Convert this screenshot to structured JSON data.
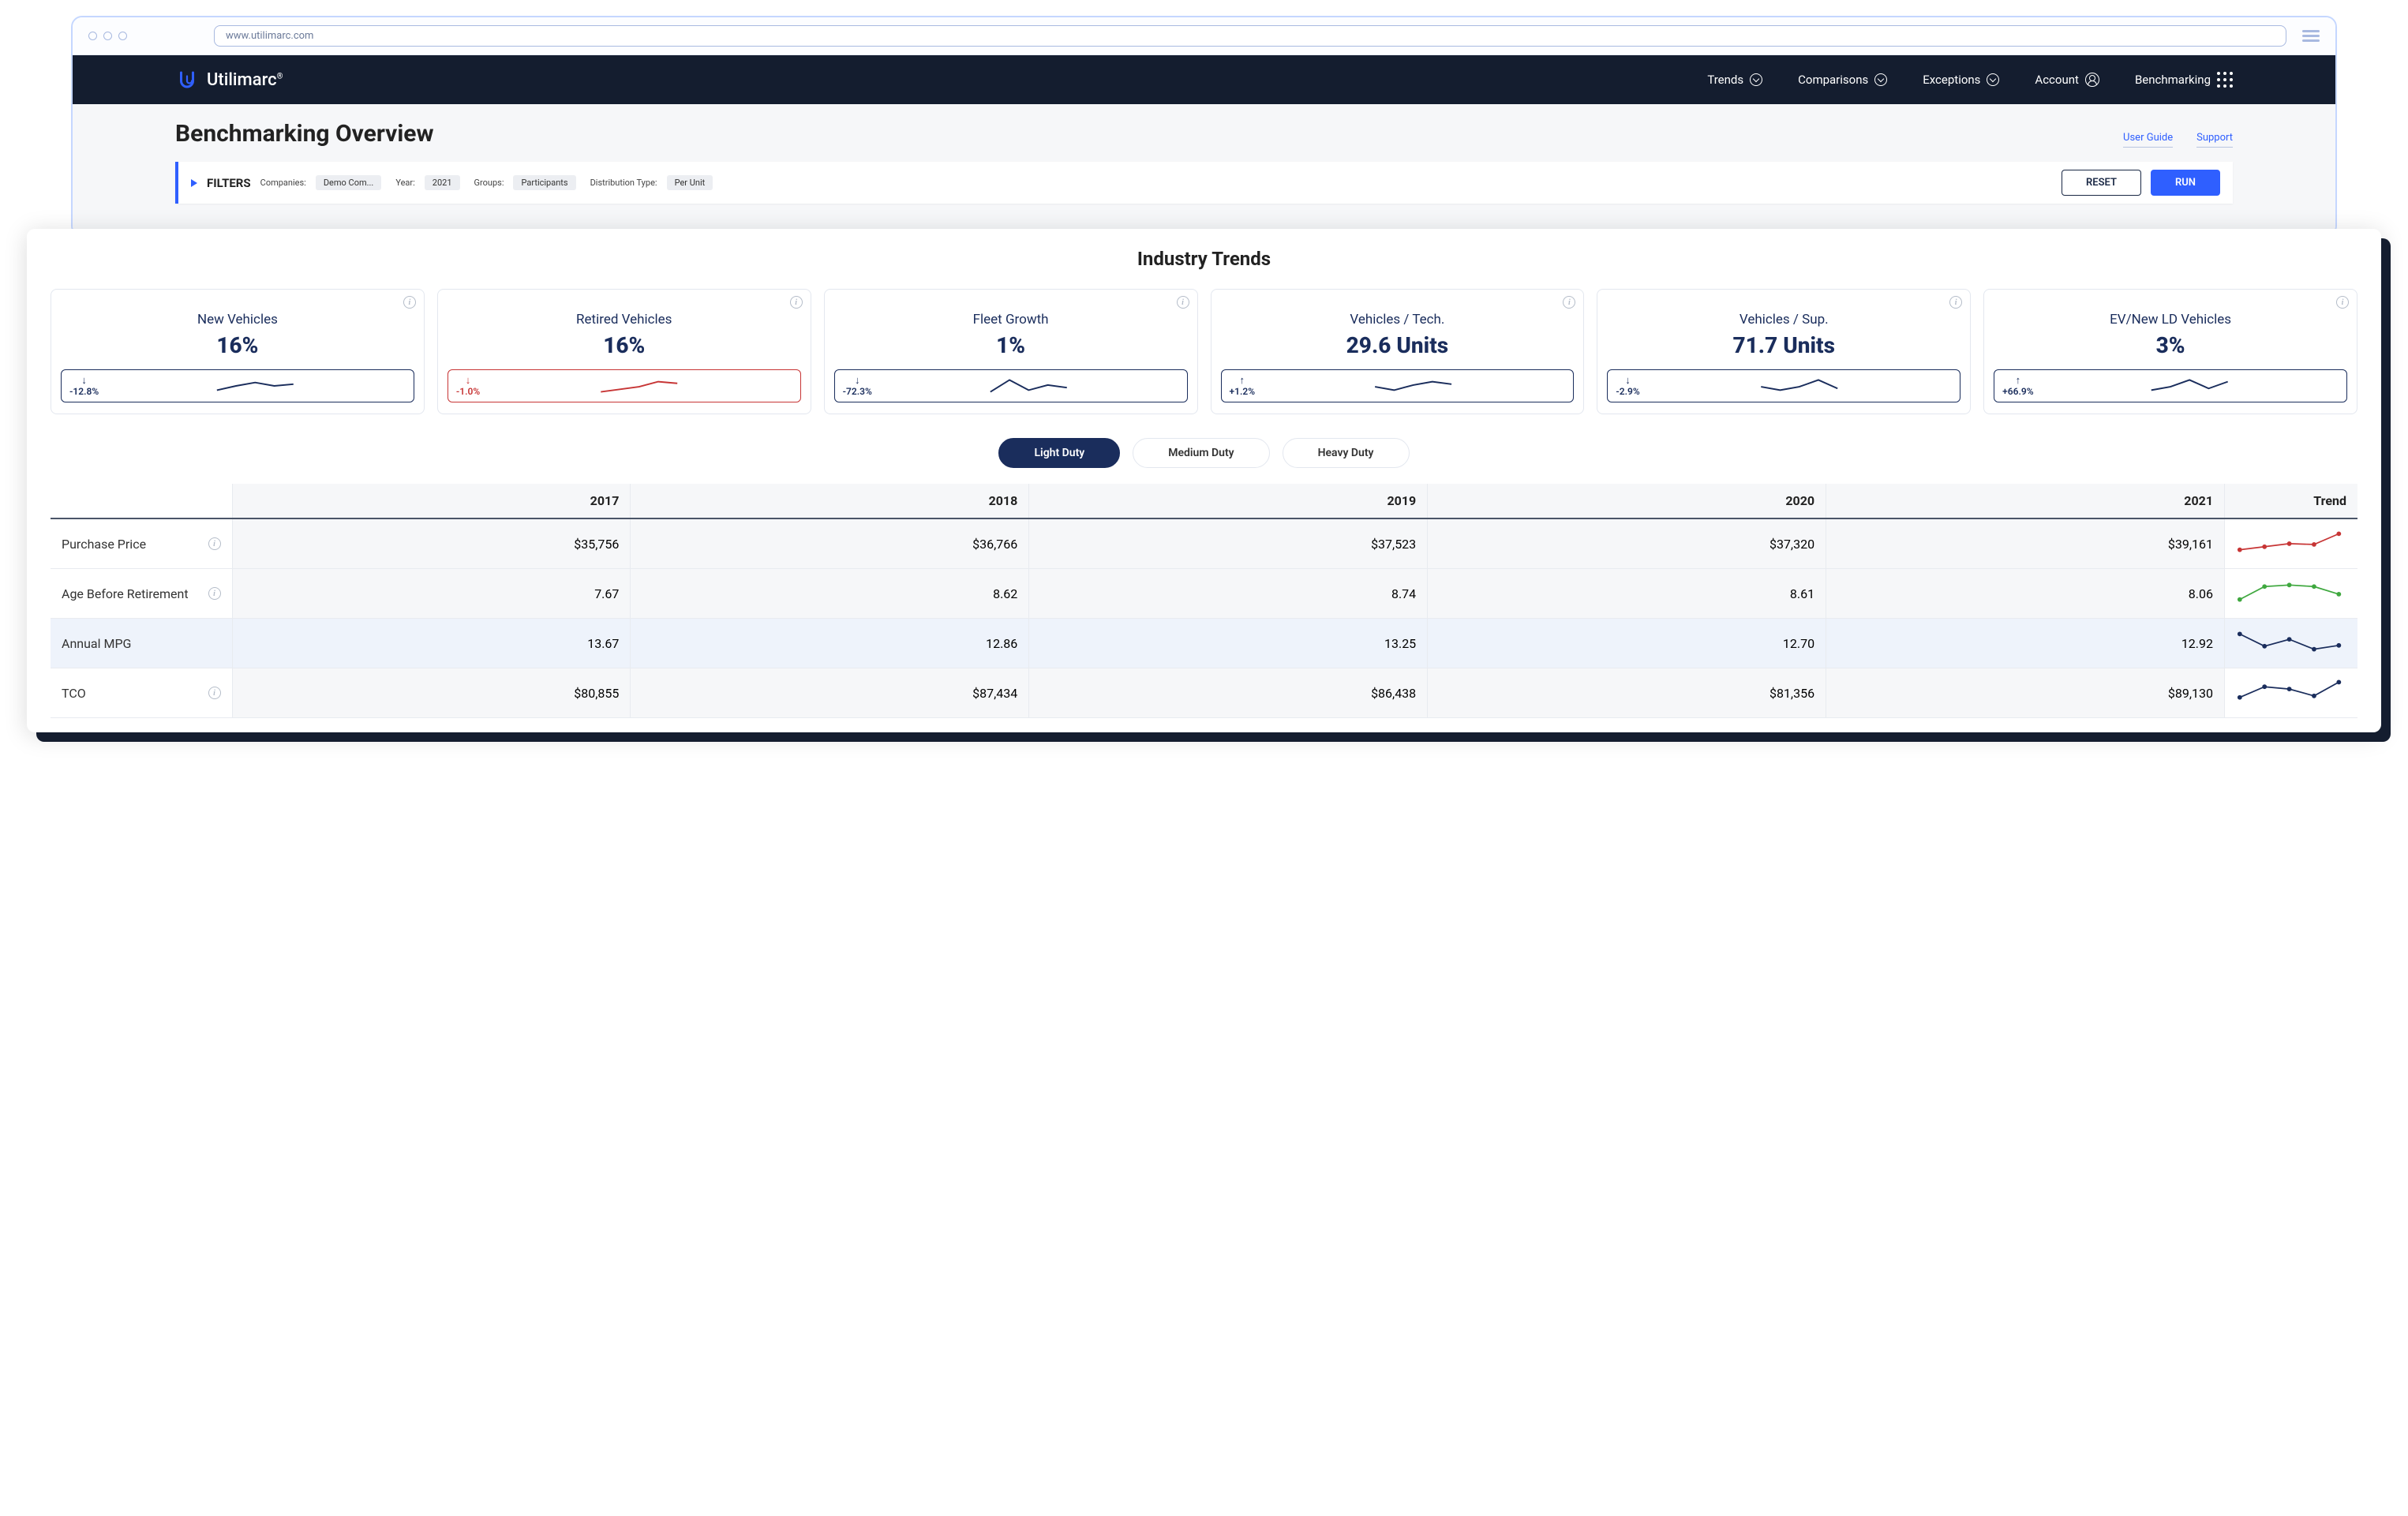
{
  "browser": {
    "url": "www.utilimarc.com"
  },
  "brand": {
    "name": "Utilimarc",
    "reg": "®"
  },
  "nav": {
    "items": [
      "Trends",
      "Comparisons",
      "Exceptions",
      "Account",
      "Benchmarking"
    ]
  },
  "page": {
    "title": "Benchmarking Overview",
    "links": {
      "guide": "User Guide",
      "support": "Support"
    }
  },
  "filters": {
    "label": "FILTERS",
    "companies_label": "Companies:",
    "companies_value": "Demo Com...",
    "year_label": "Year:",
    "year_value": "2021",
    "groups_label": "Groups:",
    "groups_value": "Participants",
    "dist_label": "Distribution Type:",
    "dist_value": "Per Unit",
    "reset": "RESET",
    "run": "RUN"
  },
  "section": {
    "title": "Industry Trends"
  },
  "kpis": [
    {
      "label": "New Vehicles",
      "value": "16%",
      "delta": "-12.8%",
      "dir": "down",
      "tone": "navy",
      "spark": [
        18,
        13,
        9,
        13,
        11
      ]
    },
    {
      "label": "Retired Vehicles",
      "value": "16%",
      "delta": "-1.0%",
      "dir": "down",
      "tone": "red",
      "spark": [
        20,
        17,
        14,
        8,
        10
      ]
    },
    {
      "label": "Fleet Growth",
      "value": "1%",
      "delta": "-72.3%",
      "dir": "down",
      "tone": "navy",
      "spark": [
        20,
        6,
        18,
        12,
        15
      ]
    },
    {
      "label": "Vehicles / Tech.",
      "value": "29.6 Units",
      "delta": "+1.2%",
      "dir": "up",
      "tone": "navy",
      "spark": [
        14,
        18,
        12,
        8,
        11
      ]
    },
    {
      "label": "Vehicles / Sup.",
      "value": "71.7 Units",
      "delta": "-2.9%",
      "dir": "down",
      "tone": "navy",
      "spark": [
        14,
        18,
        14,
        6,
        16
      ]
    },
    {
      "label": "EV/New LD Vehicles",
      "value": "3%",
      "delta": "+66.9%",
      "dir": "up",
      "tone": "navy",
      "spark": [
        18,
        14,
        6,
        16,
        8
      ]
    }
  ],
  "duty_tabs": [
    "Light Duty",
    "Medium Duty",
    "Heavy Duty"
  ],
  "table": {
    "years": [
      "2017",
      "2018",
      "2019",
      "2020",
      "2021"
    ],
    "trend_header": "Trend",
    "row_colors": [
      "#c73535",
      "#3fa83f",
      "#1a2d5c",
      "#1a2d5c"
    ],
    "rows": [
      {
        "label": "Purchase Price",
        "info": true,
        "cells": [
          "$35,756",
          "$36,766",
          "$37,523",
          "$37,320",
          "$39,161"
        ],
        "trend": [
          26,
          22,
          18,
          19,
          5
        ]
      },
      {
        "label": "Age Before Retirement",
        "info": true,
        "cells": [
          "7.67",
          "8.62",
          "8.74",
          "8.61",
          "8.06"
        ],
        "trend": [
          26,
          9,
          7,
          9,
          19
        ]
      },
      {
        "label": "Annual MPG",
        "info": false,
        "cells": [
          "13.67",
          "12.86",
          "13.25",
          "12.70",
          "12.92"
        ],
        "trend": [
          6,
          22,
          13,
          26,
          21
        ]
      },
      {
        "label": "TCO",
        "info": true,
        "cells": [
          "$80,855",
          "$87,434",
          "$86,438",
          "$81,356",
          "$89,130"
        ],
        "trend": [
          24,
          10,
          13,
          22,
          4
        ]
      }
    ]
  },
  "colors": {
    "navy": "#1a2d5c",
    "red": "#c73535",
    "blue": "#2f5fff"
  }
}
